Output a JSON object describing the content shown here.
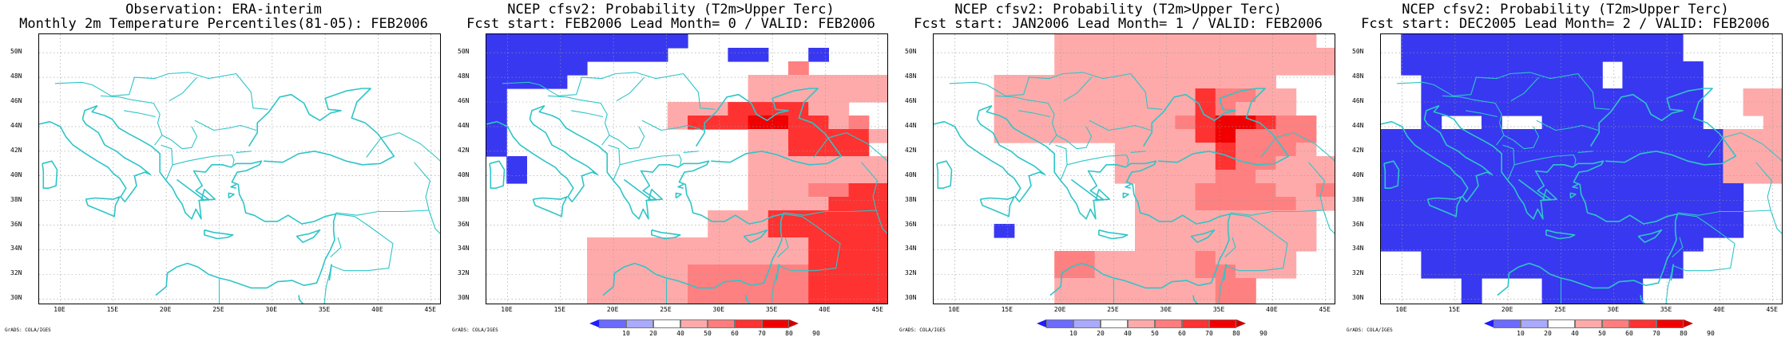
{
  "panels": [
    {
      "title1": "Observation: ERA-interim",
      "title2": "Monthly 2m Temperature Percentiles(81-05): FEB2006",
      "grid": [],
      "has_colorbar": false
    },
    {
      "title1": "NCEP cfsv2: Probability (T2m>Upper Terc)",
      "title2": "Fcst start: FEB2006  Lead Month= 0 / VALID: FEB2006",
      "has_colorbar": true,
      "grid": [
        "BBBBBBBBBB..........",
        "BBBBBBBBB...BB..B...",
        "BBBBB..........b....",
        "BBBB.........aaaaaaa",
        "B............aaaaaaa",
        "B........aaaccccaa..",
        "B........acccddccab.",
        "B............aacccca",
        "B............aacccc.",
        ".B...........aaaaaaa",
        ".B...........aaaaaaa",
        ".............aaabbcc",
        ".............aaaaccc",
        "...........aaacccccc",
        "...........aaacccccc",
        ".....aaaaaaaaaaacccc",
        ".....aaaaaaaaaaacccc",
        ".....aaaaabbbbbbcccc",
        ".....aaaaabbbbbbcccc",
        ".....aaaaabbbbbbcccc"
      ]
    },
    {
      "title1": "NCEP cfsv2: Probability (T2m>Upper Terc)",
      "title2": "Fcst start: JAN2006  Lead Month= 1 / VALID: FEB2006",
      "has_colorbar": true,
      "grid": [
        "......aaaaaaaaaaaaa.",
        "......aaaaaaaaaaaaaa",
        "......aaaaaaaaaaaaaa",
        "...aaaaaaaaaaaaaa...",
        "...aaaaaaaaaacbbaa..",
        "...aaaaaaaaaacbaaa..",
        "...aaaaaaaaabcddcbb.",
        "...aaaaaaaaaacdbbbb.",
        ".........aaaaacbbba.",
        ".........aaaaacbbaaa",
        ".........aaaaabbaaaa",
        "..........aaabbbbaab",
        "..........aaabbbbbaa",
        "..........aaaaaaaaa.",
        "...B......aaaaaaaaa.",
        "..........aaaaaaaaa.",
        "......bbaaaaabaaaa..",
        "......bbaaaaabbaaa..",
        "......aaaaaaaabb....",
        "......aaaaaaaabb...."
      ]
    },
    {
      "title1": "NCEP cfsv2: Probability (T2m>Upper Terc)",
      "title2": "Fcst start: DEC2005  Lead Month= 2 / VALID: FEB2006",
      "has_colorbar": true,
      "grid": [
        ".BBBBBBBBBBBBBB.....",
        ".BBBBBBBBBBBBBB.....",
        ".BBBBBBBBBB.BBBB....",
        "..BBBBBBBBB.BBBB....",
        "..BBBBBBBBBBBBBB..aa",
        "..BBBBBBBBBBBBBB..aa",
        "..B..B..BBBBBBBB...a",
        "BBBBBBBBBBBBBBBBBaaa",
        "BBBBBBBBBBBBBBBBBaaa",
        "BBBBBBBBBBBBBBBBBaaa",
        "BBBBBBBBBBBBBBBBBaaa",
        "BBBBBBBBBBBBBBBBBB..",
        "BBBBBBBBBBBBBBBBBB..",
        "BBBBBBBBBBBBBBBBBB..",
        "BBBBBBBBBBBBBBBBBB..",
        "BBBBBBBBBBBBBBBB....",
        "..BBBBBBBBBBBBB.....",
        "..BBBBBBBBBBBBB.....",
        "....B...BBBBB.......",
        "....B...BBBBB......."
      ]
    }
  ],
  "map": {
    "lon_range": [
      8,
      46
    ],
    "lat_range": [
      29.5,
      51.5
    ],
    "lat_ticks": [
      "30N",
      "32N",
      "34N",
      "36N",
      "38N",
      "40N",
      "42N",
      "44N",
      "46N",
      "48N",
      "50N"
    ],
    "lon_ticks": [
      "10E",
      "15E",
      "20E",
      "25E",
      "30E",
      "35E",
      "40E",
      "45E"
    ],
    "grid_resolution_deg": 2.5,
    "grid_origin": [
      8.75,
      51.25
    ]
  },
  "colorbar": {
    "labels": [
      "10",
      "20",
      "40",
      "50",
      "60",
      "70",
      "80",
      "90"
    ],
    "colors": [
      "#1e1eff",
      "#6b6bff",
      "#a9a9ff",
      "#ffffff",
      "#ffaaaa",
      "#ff7d7d",
      "#ff3232",
      "#f00000",
      "#c80000"
    ]
  },
  "legend_cell_colors": {
    "B": "#3838f0",
    "b": "#a9a9ff",
    "a": "#ffaaaa",
    "b_red": "#ff8080",
    "c": "#ff3232",
    "d": "#f00000"
  },
  "coast_color": "#2ec5c8",
  "credit": "GrADS: COLA/IGES"
}
